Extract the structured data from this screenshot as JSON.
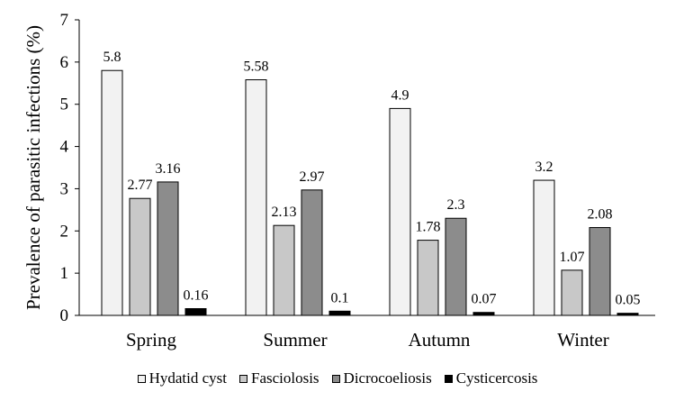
{
  "chart_data": {
    "type": "bar",
    "categories": [
      "Spring",
      "Summer",
      "Autumn",
      "Winter"
    ],
    "series": [
      {
        "name": "Hydatid cyst",
        "values": [
          5.8,
          5.58,
          4.9,
          3.2
        ],
        "labels": [
          "5.8",
          "5.58",
          "4.9",
          "3.2"
        ],
        "color": "#f2f2f2"
      },
      {
        "name": "Fasciolosis",
        "values": [
          2.77,
          2.13,
          1.78,
          1.07
        ],
        "labels": [
          "2.77",
          "2.13",
          "1.78",
          "1.07"
        ],
        "color": "#c8c8c8"
      },
      {
        "name": "Dicrocoeliosis",
        "values": [
          3.16,
          2.97,
          2.3,
          2.08
        ],
        "labels": [
          "3.16",
          "2.97",
          "2.3",
          "2.08"
        ],
        "color": "#8c8c8c"
      },
      {
        "name": "Cysticercosis",
        "values": [
          0.16,
          0.1,
          0.07,
          0.05
        ],
        "labels": [
          "0.16",
          "0.1",
          "0.07",
          "0.05"
        ],
        "color": "#000000"
      }
    ],
    "title": "",
    "xlabel": "",
    "ylabel": "Prevalence of parasitic infections (%)",
    "ylim": [
      0,
      7
    ],
    "yticks": [
      "0",
      "1",
      "2",
      "3",
      "4",
      "5",
      "6",
      "7"
    ],
    "grid": false,
    "legend_position": "bottom"
  }
}
